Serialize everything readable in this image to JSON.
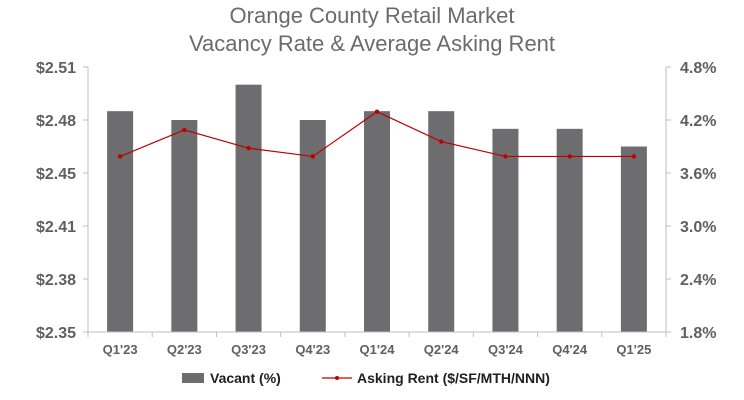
{
  "chart_data": {
    "type": "bar",
    "title": [
      "Orange County Retail Market",
      "Vacancy Rate & Average Asking Rent"
    ],
    "categories": [
      "Q1'23",
      "Q2'23",
      "Q3'23",
      "Q4'23",
      "Q1'24",
      "Q2'24",
      "Q3'24",
      "Q4'24",
      "Q1'25"
    ],
    "series": [
      {
        "name": "Vacant (%)",
        "type": "bar",
        "axis": "right",
        "color": "#6d6d6f",
        "values": [
          4.3,
          4.2,
          4.6,
          4.2,
          4.3,
          4.3,
          4.1,
          4.1,
          3.9
        ]
      },
      {
        "name": "Asking Rent ($/SF/MTH/NNN)",
        "type": "line",
        "axis": "left",
        "color": "#c00000",
        "values": [
          2.456,
          2.472,
          2.461,
          2.456,
          2.483,
          2.465,
          2.456,
          2.456,
          2.456
        ]
      }
    ],
    "y_left": {
      "ylim": [
        2.35,
        2.51
      ],
      "tick_labels": [
        "$2.35",
        "$2.38",
        "$2.41",
        "$2.45",
        "$2.48",
        "$2.51"
      ]
    },
    "y_right": {
      "ylim": [
        1.8,
        4.8
      ],
      "tick_labels": [
        "1.8%",
        "2.4%",
        "3.0%",
        "3.6%",
        "4.2%",
        "4.8%"
      ]
    },
    "grid": false,
    "legend": "bottom-center"
  }
}
